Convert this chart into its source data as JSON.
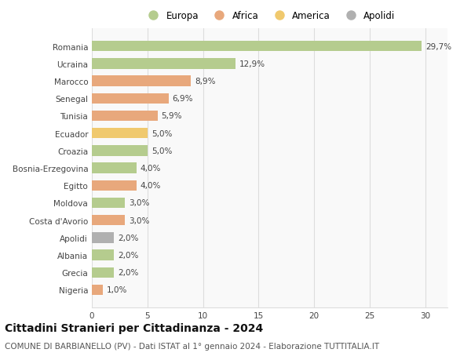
{
  "categories": [
    "Romania",
    "Ucraina",
    "Marocco",
    "Senegal",
    "Tunisia",
    "Ecuador",
    "Croazia",
    "Bosnia-Erzegovina",
    "Egitto",
    "Moldova",
    "Costa d'Avorio",
    "Apolidi",
    "Albania",
    "Grecia",
    "Nigeria"
  ],
  "values": [
    29.7,
    12.9,
    8.9,
    6.9,
    5.9,
    5.0,
    5.0,
    4.0,
    4.0,
    3.0,
    3.0,
    2.0,
    2.0,
    2.0,
    1.0
  ],
  "labels": [
    "29,7%",
    "12,9%",
    "8,9%",
    "6,9%",
    "5,9%",
    "5,0%",
    "5,0%",
    "4,0%",
    "4,0%",
    "3,0%",
    "3,0%",
    "2,0%",
    "2,0%",
    "2,0%",
    "1,0%"
  ],
  "colors": [
    "#b5cc8e",
    "#b5cc8e",
    "#e8a87c",
    "#e8a87c",
    "#e8a87c",
    "#f0c96e",
    "#b5cc8e",
    "#b5cc8e",
    "#e8a87c",
    "#b5cc8e",
    "#e8a87c",
    "#b0b0b0",
    "#b5cc8e",
    "#b5cc8e",
    "#e8a87c"
  ],
  "legend": [
    {
      "label": "Europa",
      "color": "#b5cc8e"
    },
    {
      "label": "Africa",
      "color": "#e8a87c"
    },
    {
      "label": "America",
      "color": "#f0c96e"
    },
    {
      "label": "Apolidi",
      "color": "#b0b0b0"
    }
  ],
  "xlim": [
    0,
    32
  ],
  "xticks": [
    0,
    5,
    10,
    15,
    20,
    25,
    30
  ],
  "title": "Cittadini Stranieri per Cittadinanza - 2024",
  "subtitle": "COMUNE DI BARBIANELLO (PV) - Dati ISTAT al 1° gennaio 2024 - Elaborazione TUTTITALIA.IT",
  "bg_color": "#ffffff",
  "plot_bg_color": "#f9f9f9",
  "grid_color": "#dddddd",
  "bar_height": 0.6,
  "label_fontsize": 7.5,
  "tick_fontsize": 7.5,
  "title_fontsize": 10,
  "subtitle_fontsize": 7.5
}
